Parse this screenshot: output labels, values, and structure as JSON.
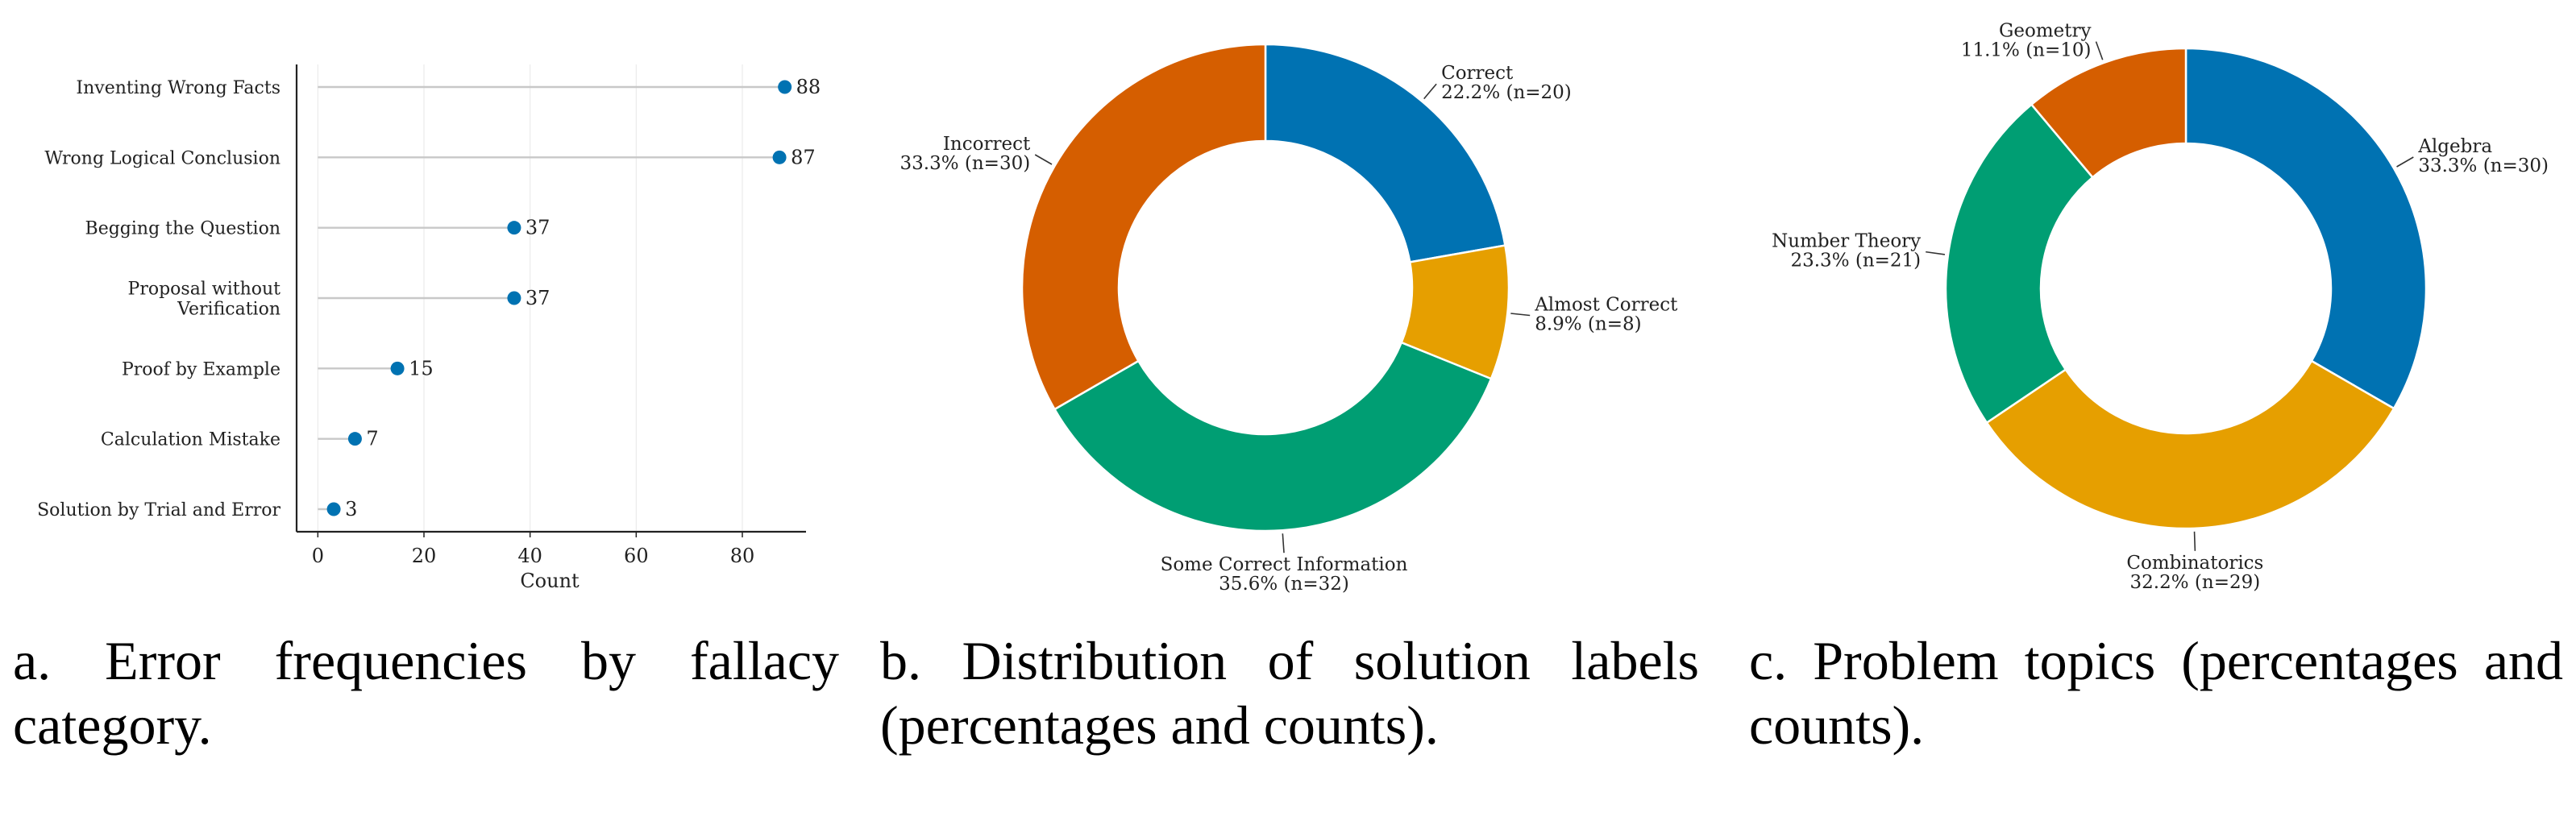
{
  "chart_data": [
    {
      "type": "lollipop",
      "orientation": "horizontal",
      "categories": [
        "Inventing Wrong Facts",
        "Wrong Logical Conclusion",
        "Begging the Question",
        "Proposal without Verification",
        "Proof by Example",
        "Calculation Mistake",
        "Solution by Trial and Error"
      ],
      "category_lines": [
        [
          "Inventing Wrong Facts"
        ],
        [
          "Wrong Logical Conclusion"
        ],
        [
          "Begging the Question"
        ],
        [
          "Proposal without",
          "Verification"
        ],
        [
          "Proof by Example"
        ],
        [
          "Calculation Mistake"
        ],
        [
          "Solution by Trial and Error"
        ]
      ],
      "values": [
        88,
        87,
        37,
        37,
        15,
        7,
        3
      ],
      "value_labels": [
        "88",
        "87",
        "37",
        "37",
        "15",
        "7",
        "3"
      ],
      "xlabel": "Count",
      "xlim": [
        -4,
        92
      ],
      "xticks": [
        0,
        20,
        40,
        60,
        80
      ],
      "xtick_labels": [
        "0",
        "20",
        "40",
        "60",
        "80"
      ],
      "grid": "vertical",
      "color": "#0072B2",
      "caption": "a. Error frequencies by fallacy category."
    },
    {
      "type": "pie",
      "variant": "donut",
      "labels": [
        "Correct",
        "Almost Correct",
        "Some Correct Information",
        "Incorrect"
      ],
      "values": [
        20,
        8,
        32,
        30
      ],
      "percent_labels": [
        "22.2% (n=20)",
        "8.9% (n=8)",
        "35.6% (n=32)",
        "33.3% (n=30)"
      ],
      "colors": [
        "#0072B2",
        "#E69F00",
        "#009E73",
        "#D55E00"
      ],
      "caption": "b. Distribution of solution labels (percentages and counts)."
    },
    {
      "type": "pie",
      "variant": "donut",
      "labels": [
        "Algebra",
        "Combinatorics",
        "Number Theory",
        "Geometry"
      ],
      "values": [
        30,
        29,
        21,
        10
      ],
      "percent_labels": [
        "33.3% (n=30)",
        "32.2% (n=29)",
        "23.3% (n=21)",
        "11.1% (n=10)"
      ],
      "colors": [
        "#0072B2",
        "#E69F00",
        "#009E73",
        "#D55E00"
      ],
      "caption": "c. Problem topics (percentages and counts)."
    }
  ]
}
